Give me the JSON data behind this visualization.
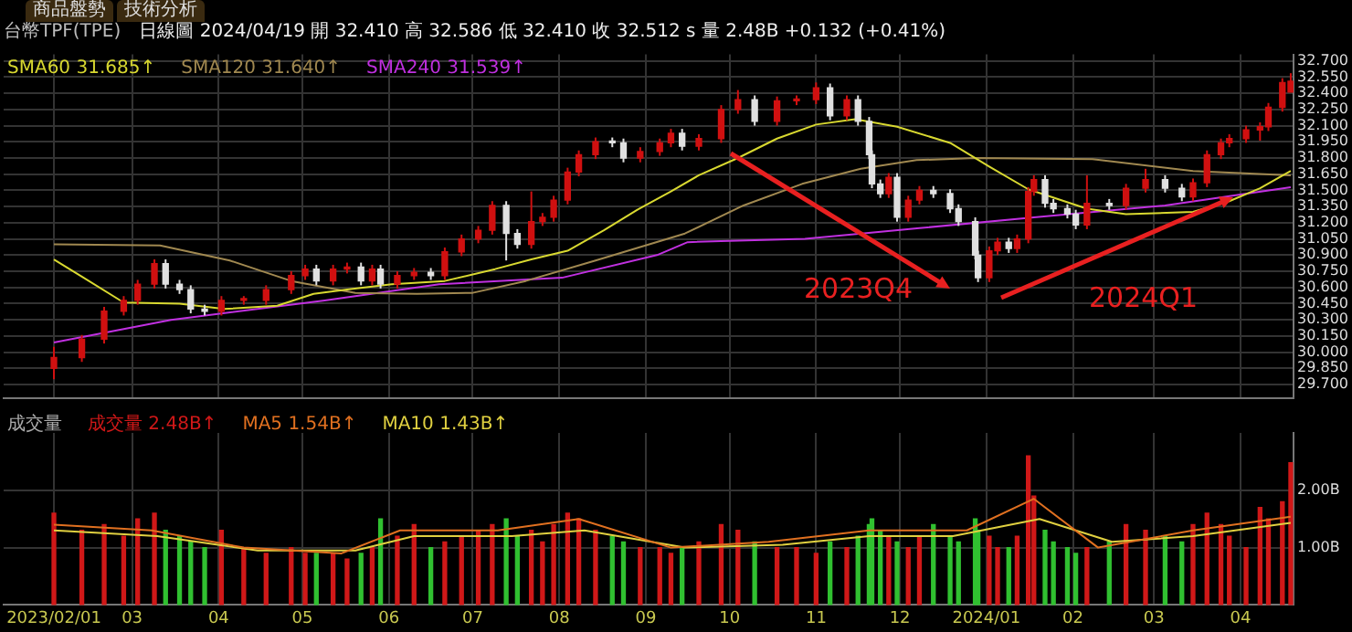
{
  "chart_data": [
    {
      "type": "candlestick",
      "title": "台幣TPF(TPE)",
      "subtitle": "日線圖 2024/04/19 開 32.410 高 32.586 低 32.410 收 32.512 s 量 2.48B +0.132 (+0.41%)",
      "annotations": [
        "商品盤勢",
        "技術分析",
        "2023Q4",
        "2024Q1"
      ],
      "x": [
        "2023-02-01",
        "2023-02-11",
        "2023-02-19",
        "2023-02-26",
        "2023-03-03",
        "2023-03-09",
        "2023-03-13",
        "2023-03-18",
        "2023-03-22",
        "2023-03-27",
        "2023-04-02",
        "2023-04-10",
        "2023-04-18",
        "2023-04-27",
        "2023-05-02",
        "2023-05-06",
        "2023-05-12",
        "2023-05-17",
        "2023-05-22",
        "2023-05-26",
        "2023-05-29",
        "2023-06-04",
        "2023-06-10",
        "2023-06-16",
        "2023-06-21",
        "2023-06-27",
        "2023-07-03",
        "2023-07-08",
        "2023-07-13",
        "2023-07-17",
        "2023-07-22",
        "2023-07-26",
        "2023-07-30",
        "2023-08-04",
        "2023-08-08",
        "2023-08-14",
        "2023-08-20",
        "2023-08-24",
        "2023-08-30",
        "2023-09-06",
        "2023-09-10",
        "2023-09-14",
        "2023-09-20",
        "2023-09-28",
        "2023-10-04",
        "2023-10-10",
        "2023-10-18",
        "2023-10-25",
        "2023-11-01",
        "2023-11-06",
        "2023-11-12",
        "2023-11-16",
        "2023-11-20",
        "2023-11-21",
        "2023-11-24",
        "2023-11-27",
        "2023-11-30",
        "2023-12-04",
        "2023-12-08",
        "2023-12-13",
        "2023-12-19",
        "2023-12-22",
        "2023-12-28",
        "2023-12-29",
        "2024-01-02",
        "2024-01-05",
        "2024-01-09",
        "2024-01-12",
        "2024-01-16",
        "2024-01-18",
        "2024-01-22",
        "2024-01-25",
        "2024-01-30",
        "2024-02-02",
        "2024-02-06",
        "2024-02-14",
        "2024-02-20",
        "2024-02-27",
        "2024-03-05",
        "2024-03-11",
        "2024-03-15",
        "2024-03-20",
        "2024-03-25",
        "2024-03-28",
        "2024-04-03",
        "2024-04-08",
        "2024-04-11",
        "2024-04-16",
        "2024-04-19"
      ],
      "ohlc": [
        [
          29.85,
          30.05,
          29.75,
          29.95
        ],
        [
          29.95,
          30.16,
          29.91,
          30.12
        ],
        [
          30.12,
          30.42,
          30.08,
          30.38
        ],
        [
          30.38,
          30.52,
          30.34,
          30.48
        ],
        [
          30.48,
          30.67,
          30.44,
          30.63
        ],
        [
          30.63,
          30.86,
          30.59,
          30.82
        ],
        [
          30.82,
          30.86,
          30.59,
          30.63
        ],
        [
          30.63,
          30.67,
          30.54,
          30.58
        ],
        [
          30.58,
          30.62,
          30.36,
          30.4
        ],
        [
          30.4,
          30.44,
          30.34,
          30.38
        ],
        [
          30.38,
          30.52,
          30.34,
          30.48
        ],
        [
          30.48,
          30.52,
          30.44,
          30.48
        ],
        [
          30.48,
          30.62,
          30.44,
          30.58
        ],
        [
          30.58,
          30.75,
          30.54,
          30.71
        ],
        [
          30.71,
          30.81,
          30.67,
          30.77
        ],
        [
          30.77,
          30.81,
          30.62,
          30.66
        ],
        [
          30.66,
          30.81,
          30.62,
          30.77
        ],
        [
          30.77,
          30.83,
          30.73,
          30.79
        ],
        [
          30.79,
          30.83,
          30.62,
          30.66
        ],
        [
          30.66,
          30.81,
          30.62,
          30.77
        ],
        [
          30.77,
          30.81,
          30.59,
          30.63
        ],
        [
          30.63,
          30.75,
          30.59,
          30.71
        ],
        [
          30.71,
          30.78,
          30.67,
          30.74
        ],
        [
          30.74,
          30.78,
          30.67,
          30.71
        ],
        [
          30.71,
          30.97,
          30.67,
          30.93
        ],
        [
          30.93,
          31.09,
          30.89,
          31.05
        ],
        [
          31.05,
          31.17,
          31.01,
          31.13
        ],
        [
          31.13,
          31.4,
          31.09,
          31.36
        ],
        [
          31.36,
          31.4,
          30.85,
          31.1
        ],
        [
          31.1,
          31.14,
          30.96,
          31.0
        ],
        [
          31.0,
          31.49,
          30.96,
          31.21
        ],
        [
          31.21,
          31.29,
          31.17,
          31.25
        ],
        [
          31.25,
          31.45,
          31.21,
          31.41
        ],
        [
          31.41,
          31.71,
          31.37,
          31.67
        ],
        [
          31.67,
          31.87,
          31.63,
          31.83
        ],
        [
          31.83,
          31.99,
          31.79,
          31.95
        ],
        [
          31.95,
          31.99,
          31.9,
          31.94
        ],
        [
          31.94,
          31.98,
          31.76,
          31.8
        ],
        [
          31.8,
          31.9,
          31.76,
          31.86
        ],
        [
          31.86,
          31.98,
          31.82,
          31.94
        ],
        [
          31.94,
          32.07,
          31.9,
          32.03
        ],
        [
          32.03,
          32.07,
          31.87,
          31.91
        ],
        [
          31.91,
          32.02,
          31.87,
          31.98
        ],
        [
          31.98,
          32.29,
          31.94,
          32.25
        ],
        [
          32.25,
          32.43,
          32.21,
          32.34
        ],
        [
          32.34,
          32.38,
          32.1,
          32.14
        ],
        [
          32.14,
          32.37,
          32.1,
          32.33
        ],
        [
          32.33,
          32.38,
          32.29,
          32.34
        ],
        [
          32.34,
          32.5,
          32.3,
          32.45
        ],
        [
          32.45,
          32.49,
          32.15,
          32.19
        ],
        [
          32.19,
          32.38,
          32.15,
          32.34
        ],
        [
          32.34,
          32.38,
          32.1,
          32.14
        ],
        [
          32.14,
          32.18,
          31.79,
          31.83
        ],
        [
          31.83,
          31.87,
          31.52,
          31.56
        ],
        [
          31.56,
          31.6,
          31.43,
          31.47
        ],
        [
          31.47,
          31.66,
          31.43,
          31.62
        ],
        [
          31.62,
          31.66,
          31.21,
          31.25
        ],
        [
          31.25,
          31.45,
          31.21,
          31.41
        ],
        [
          31.41,
          31.54,
          31.37,
          31.5
        ],
        [
          31.5,
          31.54,
          31.43,
          31.47
        ],
        [
          31.47,
          31.51,
          31.29,
          31.33
        ],
        [
          31.33,
          31.37,
          31.17,
          31.21
        ],
        [
          31.21,
          31.25,
          30.86,
          30.9
        ],
        [
          30.9,
          30.94,
          30.65,
          30.69
        ],
        [
          30.69,
          30.98,
          30.65,
          30.94
        ],
        [
          30.94,
          31.06,
          30.9,
          31.02
        ],
        [
          31.02,
          31.06,
          30.92,
          30.96
        ],
        [
          30.96,
          31.09,
          30.92,
          31.05
        ],
        [
          31.05,
          31.53,
          31.01,
          31.49
        ],
        [
          31.49,
          31.64,
          31.45,
          31.6
        ],
        [
          31.6,
          31.64,
          31.34,
          31.38
        ],
        [
          31.38,
          31.42,
          31.29,
          31.33
        ],
        [
          31.33,
          31.37,
          31.24,
          31.28
        ],
        [
          31.28,
          31.32,
          31.14,
          31.18
        ],
        [
          31.18,
          31.64,
          31.14,
          31.38
        ],
        [
          31.38,
          31.42,
          31.32,
          31.36
        ],
        [
          31.36,
          31.56,
          31.32,
          31.52
        ],
        [
          31.52,
          31.7,
          31.48,
          31.6
        ],
        [
          31.6,
          31.64,
          31.48,
          31.52
        ],
        [
          31.52,
          31.56,
          31.4,
          31.44
        ],
        [
          31.44,
          31.61,
          31.4,
          31.57
        ],
        [
          31.57,
          31.87,
          31.53,
          31.83
        ],
        [
          31.83,
          31.98,
          31.79,
          31.94
        ],
        [
          31.94,
          32.02,
          31.9,
          31.98
        ],
        [
          31.98,
          32.1,
          31.94,
          32.06
        ],
        [
          32.06,
          32.13,
          31.96,
          32.09
        ],
        [
          32.09,
          32.31,
          32.05,
          32.27
        ],
        [
          32.27,
          32.54,
          32.23,
          32.5
        ],
        [
          32.41,
          32.586,
          32.41,
          32.512
        ]
      ],
      "colors": [
        "#d01010",
        "#d01010",
        "#d01010",
        "#d01010",
        "#d01010",
        "#d01010",
        "#e0e0e0",
        "#e0e0e0",
        "#e0e0e0",
        "#e0e0e0",
        "#d01010",
        "#d01010",
        "#d01010",
        "#d01010",
        "#d01010",
        "#e0e0e0",
        "#d01010",
        "#d01010",
        "#e0e0e0",
        "#d01010",
        "#e0e0e0",
        "#d01010",
        "#d01010",
        "#e0e0e0",
        "#d01010",
        "#d01010",
        "#d01010",
        "#d01010",
        "#e0e0e0",
        "#e0e0e0",
        "#d01010",
        "#d01010",
        "#d01010",
        "#d01010",
        "#d01010",
        "#d01010",
        "#e0e0e0",
        "#e0e0e0",
        "#d01010",
        "#d01010",
        "#d01010",
        "#e0e0e0",
        "#d01010",
        "#d01010",
        "#d01010",
        "#e0e0e0",
        "#d01010",
        "#d01010",
        "#d01010",
        "#e0e0e0",
        "#d01010",
        "#e0e0e0",
        "#e0e0e0",
        "#e0e0e0",
        "#e0e0e0",
        "#d01010",
        "#e0e0e0",
        "#d01010",
        "#d01010",
        "#e0e0e0",
        "#e0e0e0",
        "#e0e0e0",
        "#e0e0e0",
        "#e0e0e0",
        "#d01010",
        "#d01010",
        "#e0e0e0",
        "#d01010",
        "#d01010",
        "#d01010",
        "#e0e0e0",
        "#e0e0e0",
        "#e0e0e0",
        "#e0e0e0",
        "#d01010",
        "#e0e0e0",
        "#d01010",
        "#d01010",
        "#e0e0e0",
        "#e0e0e0",
        "#d01010",
        "#d01010",
        "#d01010",
        "#d01010",
        "#d01010",
        "#d01010",
        "#d01010",
        "#d01010",
        "#d01010"
      ],
      "series": [
        {
          "name": "SMA60 31.685↑",
          "type": "line",
          "color": "#d8d830",
          "x": [
            "2023-02-01",
            "2023-02-11",
            "2023-02-26",
            "2023-03-18",
            "2023-04-03",
            "2023-04-22",
            "2023-05-05",
            "2023-05-17",
            "2023-06-02",
            "2023-06-21",
            "2023-07-09",
            "2023-07-22",
            "2023-08-04",
            "2023-08-17",
            "2023-08-29",
            "2023-09-10",
            "2023-09-20",
            "2023-10-04",
            "2023-10-18",
            "2023-11-01",
            "2023-11-15",
            "2023-11-30",
            "2023-12-19",
            "2024-01-02",
            "2024-01-16",
            "2024-02-06",
            "2024-02-20",
            "2024-03-15",
            "2024-03-28",
            "2024-04-08",
            "2024-04-19"
          ],
          "values": [
            30.86,
            30.7,
            30.46,
            30.45,
            30.4,
            30.43,
            30.54,
            30.58,
            30.63,
            30.66,
            30.77,
            30.86,
            30.94,
            31.13,
            31.32,
            31.49,
            31.64,
            31.8,
            31.98,
            32.11,
            32.16,
            32.09,
            31.94,
            31.72,
            31.51,
            31.33,
            31.28,
            31.3,
            31.4,
            31.52,
            31.68
          ]
        },
        {
          "name": "SMA120 31.640↑",
          "type": "line",
          "color": "#a08850",
          "x": [
            "2023-02-01",
            "2023-03-11",
            "2023-04-05",
            "2023-04-27",
            "2023-05-20",
            "2023-06-11",
            "2023-07-01",
            "2023-07-20",
            "2023-08-14",
            "2023-09-15",
            "2023-10-06",
            "2023-10-27",
            "2023-11-17",
            "2023-12-07",
            "2023-12-28",
            "2024-02-08",
            "2024-03-15",
            "2024-04-19"
          ],
          "values": [
            31.0,
            30.99,
            30.85,
            30.66,
            30.55,
            30.54,
            30.55,
            30.66,
            30.85,
            31.1,
            31.36,
            31.56,
            31.7,
            31.78,
            31.8,
            31.79,
            31.68,
            31.64
          ]
        },
        {
          "name": "SMA240 31.539↑",
          "type": "line",
          "color": "#c030e0",
          "x": [
            "2023-02-01",
            "2023-03-15",
            "2023-05-09",
            "2023-06-19",
            "2023-08-02",
            "2023-09-05",
            "2023-09-16",
            "2023-10-28",
            "2023-12-08",
            "2024-01-18",
            "2024-03-05",
            "2024-04-19"
          ],
          "values": [
            30.09,
            30.3,
            30.48,
            30.63,
            30.69,
            30.9,
            31.02,
            31.05,
            31.15,
            31.25,
            31.36,
            31.53
          ]
        }
      ],
      "xlim": [
        "2023-01-14",
        "2024-04-20"
      ],
      "xticks": [
        {
          "value": "2023-02-01",
          "label": null
        },
        {
          "value": "2023-03-01",
          "label": null
        },
        {
          "value": "2023-04-01",
          "label": null
        },
        {
          "value": "2023-05-01",
          "label": null
        },
        {
          "value": "2023-06-01",
          "label": null
        },
        {
          "value": "2023-07-01",
          "label": null
        },
        {
          "value": "2023-08-01",
          "label": null
        },
        {
          "value": "2023-09-01",
          "label": null
        },
        {
          "value": "2023-10-01",
          "label": null
        },
        {
          "value": "2023-11-01",
          "label": null
        },
        {
          "value": "2023-12-01",
          "label": null
        },
        {
          "value": "2024-01-01",
          "label": null
        },
        {
          "value": "2024-02-01",
          "label": null
        },
        {
          "value": "2024-03-01",
          "label": null
        },
        {
          "value": "2024-04-01",
          "label": null
        }
      ],
      "ylim": [
        29.57,
        32.76
      ],
      "yticks": [
        {
          "value": 29.7,
          "label": "29.700"
        },
        {
          "value": 29.85,
          "label": "29.850"
        },
        {
          "value": 30.0,
          "label": "30.000"
        },
        {
          "value": 30.15,
          "label": "30.150"
        },
        {
          "value": 30.3,
          "label": "30.300"
        },
        {
          "value": 30.45,
          "label": "30.450"
        },
        {
          "value": 30.6,
          "label": "30.600"
        },
        {
          "value": 30.75,
          "label": "30.750"
        },
        {
          "value": 30.9,
          "label": "30.900"
        },
        {
          "value": 31.05,
          "label": "31.050"
        },
        {
          "value": 31.2,
          "label": "31.200"
        },
        {
          "value": 31.35,
          "label": "31.350"
        },
        {
          "value": 31.5,
          "label": "31.500"
        },
        {
          "value": 31.65,
          "label": "31.650"
        },
        {
          "value": 31.8,
          "label": "31.800"
        },
        {
          "value": 31.95,
          "label": "31.950"
        },
        {
          "value": 32.1,
          "label": "32.100"
        },
        {
          "value": 32.25,
          "label": "32.250"
        },
        {
          "value": 32.4,
          "label": "32.400"
        },
        {
          "value": 32.55,
          "label": "32.550"
        },
        {
          "value": 32.7,
          "label": "32.700"
        }
      ],
      "grid": true,
      "legend": "top left",
      "tick_labels": "y"
    },
    {
      "type": "bar",
      "title": "成交量",
      "x": [
        "2023-02-01",
        "2023-02-11",
        "2023-02-19",
        "2023-02-26",
        "2023-03-03",
        "2023-03-09",
        "2023-03-13",
        "2023-03-18",
        "2023-03-22",
        "2023-03-27",
        "2023-04-02",
        "2023-04-10",
        "2023-04-18",
        "2023-04-27",
        "2023-05-02",
        "2023-05-06",
        "2023-05-12",
        "2023-05-17",
        "2023-05-22",
        "2023-05-26",
        "2023-05-29",
        "2023-06-04",
        "2023-06-10",
        "2023-06-16",
        "2023-06-21",
        "2023-06-27",
        "2023-07-03",
        "2023-07-08",
        "2023-07-13",
        "2023-07-17",
        "2023-07-22",
        "2023-07-26",
        "2023-07-30",
        "2023-08-04",
        "2023-08-08",
        "2023-08-14",
        "2023-08-20",
        "2023-08-24",
        "2023-08-30",
        "2023-09-06",
        "2023-09-10",
        "2023-09-14",
        "2023-09-20",
        "2023-09-28",
        "2023-10-04",
        "2023-10-10",
        "2023-10-18",
        "2023-10-25",
        "2023-11-01",
        "2023-11-06",
        "2023-11-12",
        "2023-11-16",
        "2023-11-20",
        "2023-11-21",
        "2023-11-24",
        "2023-11-27",
        "2023-11-30",
        "2023-12-04",
        "2023-12-08",
        "2023-12-13",
        "2023-12-19",
        "2023-12-22",
        "2023-12-28",
        "2023-12-29",
        "2024-01-02",
        "2024-01-05",
        "2024-01-09",
        "2024-01-12",
        "2024-01-16",
        "2024-01-18",
        "2024-01-22",
        "2024-01-25",
        "2024-01-30",
        "2024-02-02",
        "2024-02-06",
        "2024-02-14",
        "2024-02-20",
        "2024-02-27",
        "2024-03-05",
        "2024-03-11",
        "2024-03-15",
        "2024-03-20",
        "2024-03-25",
        "2024-03-28",
        "2024-04-03",
        "2024-04-08",
        "2024-04-11",
        "2024-04-16",
        "2024-04-19"
      ],
      "series": [
        {
          "name": "成交量 2.48B↑",
          "type": "bar",
          "values": [
            1.6,
            1.3,
            1.4,
            1.2,
            1.5,
            1.6,
            1.3,
            1.2,
            1.1,
            1.0,
            1.3,
            1.0,
            0.9,
            1.0,
            0.9,
            0.9,
            0.9,
            0.8,
            0.9,
            1.0,
            1.5,
            1.2,
            1.4,
            1.0,
            1.1,
            1.2,
            1.3,
            1.4,
            1.5,
            1.2,
            1.3,
            1.1,
            1.4,
            1.6,
            1.5,
            1.3,
            1.2,
            1.1,
            1.0,
            1.0,
            0.9,
            1.0,
            1.1,
            1.4,
            1.3,
            1.1,
            1.0,
            1.0,
            0.9,
            1.1,
            1.0,
            1.2,
            1.4,
            1.5,
            1.3,
            1.2,
            1.1,
            1.0,
            1.2,
            1.4,
            1.2,
            1.1,
            1.5,
            1.3,
            1.2,
            1.0,
            1.0,
            1.2,
            2.6,
            1.9,
            1.3,
            1.1,
            1.0,
            0.9,
            1.0,
            1.1,
            1.4,
            1.3,
            1.2,
            1.1,
            1.4,
            1.6,
            1.4,
            1.2,
            1.0,
            1.7,
            1.5,
            1.8,
            2.48
          ],
          "colors": [
            "#d01818",
            "#d01818",
            "#d01818",
            "#d01818",
            "#d01818",
            "#d01818",
            "#30c030",
            "#30c030",
            "#30c030",
            "#30c030",
            "#d01818",
            "#d01818",
            "#d01818",
            "#d01818",
            "#d01818",
            "#30c030",
            "#d01818",
            "#d01818",
            "#30c030",
            "#d01818",
            "#30c030",
            "#d01818",
            "#d01818",
            "#30c030",
            "#d01818",
            "#d01818",
            "#d01818",
            "#d01818",
            "#30c030",
            "#30c030",
            "#d01818",
            "#d01818",
            "#d01818",
            "#d01818",
            "#d01818",
            "#d01818",
            "#30c030",
            "#30c030",
            "#d01818",
            "#d01818",
            "#d01818",
            "#30c030",
            "#d01818",
            "#d01818",
            "#d01818",
            "#30c030",
            "#d01818",
            "#d01818",
            "#d01818",
            "#30c030",
            "#d01818",
            "#30c030",
            "#30c030",
            "#30c030",
            "#30c030",
            "#d01818",
            "#30c030",
            "#d01818",
            "#d01818",
            "#30c030",
            "#30c030",
            "#30c030",
            "#30c030",
            "#30c030",
            "#d01818",
            "#d01818",
            "#30c030",
            "#d01818",
            "#d01818",
            "#d01818",
            "#30c030",
            "#30c030",
            "#30c030",
            "#30c030",
            "#d01818",
            "#30c030",
            "#d01818",
            "#d01818",
            "#30c030",
            "#30c030",
            "#d01818",
            "#d01818",
            "#d01818",
            "#d01818",
            "#d01818",
            "#d01818",
            "#d01818",
            "#d01818",
            "#d01818"
          ]
        },
        {
          "name": "MA5 1.54B↑",
          "type": "line",
          "color": "#e07020",
          "x": [
            "2023-02-01",
            "2023-03-08",
            "2023-04-10",
            "2023-05-15",
            "2023-06-05",
            "2023-07-10",
            "2023-08-08",
            "2023-09-10",
            "2023-10-15",
            "2023-11-20",
            "2023-12-25",
            "2024-01-18",
            "2024-02-10",
            "2024-03-15",
            "2024-04-19"
          ],
          "values": [
            1.4,
            1.3,
            1.0,
            0.9,
            1.3,
            1.3,
            1.5,
            1.0,
            1.1,
            1.3,
            1.3,
            1.85,
            1.0,
            1.3,
            1.54
          ]
        },
        {
          "name": "MA10 1.43B↑",
          "type": "line",
          "color": "#e0d040",
          "x": [
            "2023-02-01",
            "2023-03-10",
            "2023-04-15",
            "2023-05-20",
            "2023-06-10",
            "2023-07-15",
            "2023-08-10",
            "2023-09-15",
            "2023-10-20",
            "2023-11-20",
            "2023-12-20",
            "2024-01-20",
            "2024-02-15",
            "2024-03-15",
            "2024-04-19"
          ],
          "values": [
            1.3,
            1.2,
            0.95,
            0.95,
            1.2,
            1.2,
            1.3,
            1.0,
            1.05,
            1.2,
            1.2,
            1.5,
            1.1,
            1.2,
            1.43
          ]
        }
      ],
      "xlim": [
        "2023-01-14",
        "2024-04-20"
      ],
      "xticks": [
        {
          "value": "2023-02-01",
          "label": "2023/02/01"
        },
        {
          "value": "2023-03-01",
          "label": "03"
        },
        {
          "value": "2023-04-01",
          "label": "04"
        },
        {
          "value": "2023-05-01",
          "label": "05"
        },
        {
          "value": "2023-06-01",
          "label": "06"
        },
        {
          "value": "2023-07-01",
          "label": "07"
        },
        {
          "value": "2023-08-01",
          "label": "08"
        },
        {
          "value": "2023-09-01",
          "label": "09"
        },
        {
          "value": "2023-10-01",
          "label": "10"
        },
        {
          "value": "2023-11-01",
          "label": "11"
        },
        {
          "value": "2023-12-01",
          "label": "12"
        },
        {
          "value": "2024-01-01",
          "label": "2024/01"
        },
        {
          "value": "2024-02-01",
          "label": "02"
        },
        {
          "value": "2024-03-01",
          "label": "03"
        },
        {
          "value": "2024-04-01",
          "label": "04"
        }
      ],
      "ylim": [
        0,
        3
      ],
      "yticks": [
        {
          "value": 1,
          "label": "1.00B"
        },
        {
          "value": 2,
          "label": "2.00B"
        }
      ],
      "grid": true,
      "legend": "top left"
    }
  ]
}
